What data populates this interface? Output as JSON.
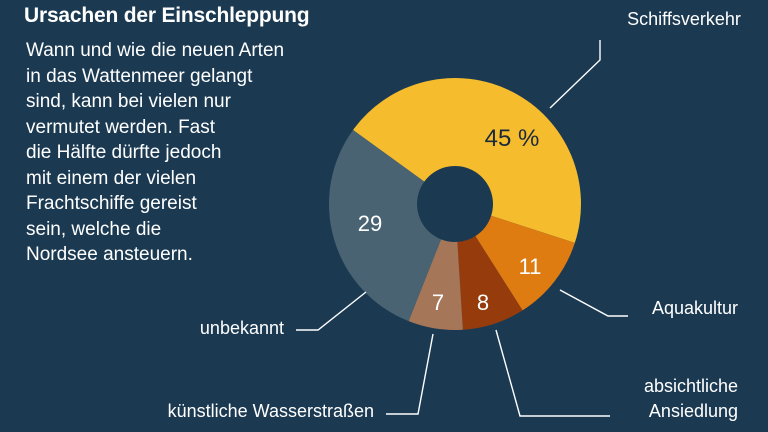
{
  "title": "Ursachen der Einschleppung",
  "intro": [
    "Wann und wie die neuen Arten",
    "in das Wattenmeer gelangt",
    "sind, kann bei vielen nur",
    "vermutet werden. Fast",
    "die Hälfte dürfte jedoch",
    "mit einem der vielen",
    "Frachtschiffe gereist",
    "sein, welche die",
    "Nordsee ansteuern."
  ],
  "chart_data": {
    "type": "pie",
    "variant": "donut",
    "title": "Ursachen der Einschleppung",
    "unit": "%",
    "slices": [
      {
        "label": "Schiffsverkehr",
        "value": 45,
        "display": "45 %",
        "color": "#f5bc2e"
      },
      {
        "label": "Aquakultur",
        "value": 11,
        "display": "11",
        "color": "#de7c12"
      },
      {
        "label": "absichtliche Ansiedlung",
        "label_lines": [
          "absichtliche",
          "Ansiedlung"
        ],
        "value": 8,
        "display": "8",
        "color": "#963c0c"
      },
      {
        "label": "künstliche Wasserstraßen",
        "value": 7,
        "display": "7",
        "color": "#a57658"
      },
      {
        "label": "unbekannt",
        "value": 29,
        "display": "29",
        "color": "#4a6373"
      }
    ]
  }
}
